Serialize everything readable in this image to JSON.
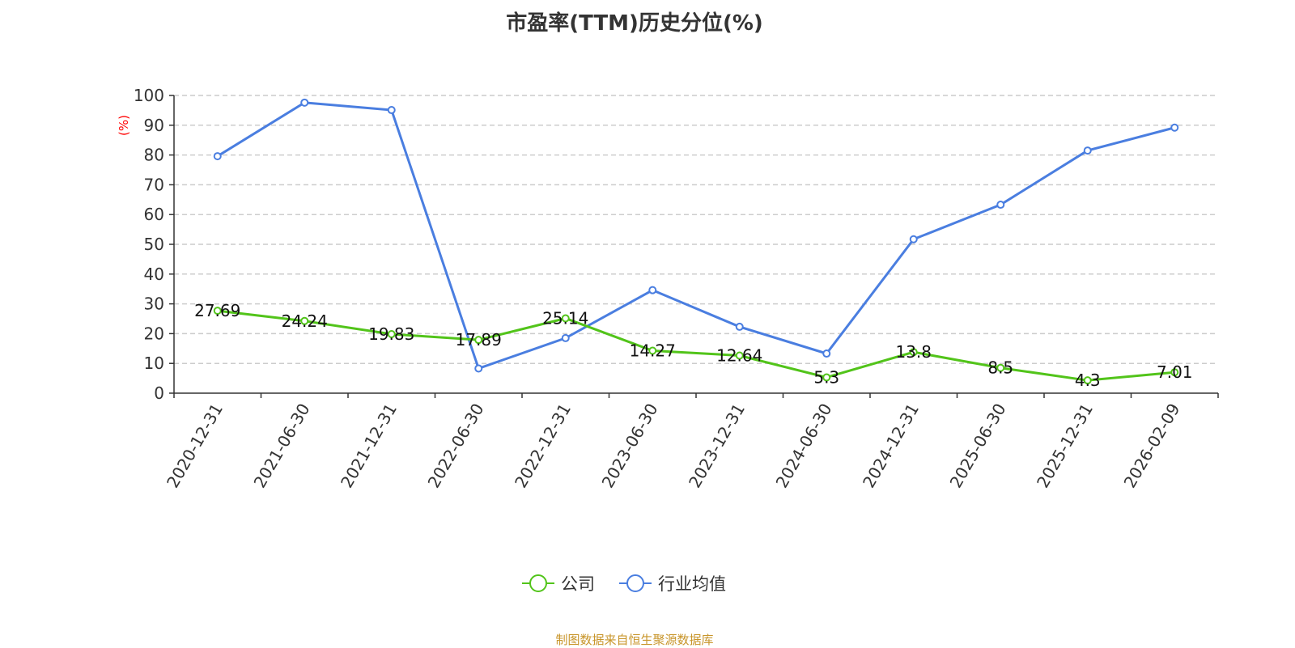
{
  "chart_data": {
    "type": "line",
    "title": "市盈率(TTM)历史分位(%)",
    "ylabel": "(%)",
    "ylim": [
      0,
      100
    ],
    "yticks": [
      0,
      10,
      20,
      30,
      40,
      50,
      60,
      70,
      80,
      90,
      100
    ],
    "grid": true,
    "legend_placement": "bottom",
    "categories": [
      "2020-12-31",
      "2021-06-30",
      "2021-12-31",
      "2022-06-30",
      "2022-12-31",
      "2023-06-30",
      "2023-12-31",
      "2024-06-30",
      "2024-12-31",
      "2025-06-30",
      "2025-12-31",
      "2026-02-09"
    ],
    "series": [
      {
        "name": "公司",
        "color": "#52c41a",
        "show_labels": true,
        "values": [
          27.69,
          24.24,
          19.83,
          17.89,
          25.14,
          14.27,
          12.64,
          5.3,
          13.8,
          8.5,
          4.3,
          7.01
        ]
      },
      {
        "name": "行业均值",
        "color": "#4a7ee0",
        "show_labels": false,
        "values": [
          79.6,
          97.6,
          95.1,
          8.3,
          18.5,
          34.6,
          22.3,
          13.3,
          51.7,
          63.3,
          81.5,
          89.2
        ]
      }
    ]
  },
  "source": "制图数据来自恒生聚源数据库"
}
